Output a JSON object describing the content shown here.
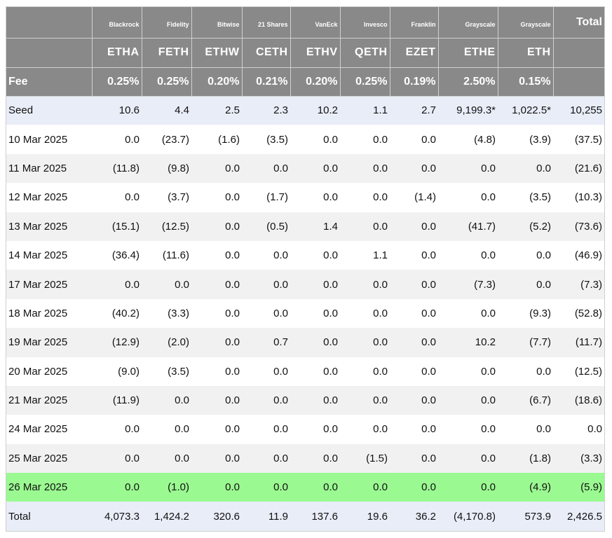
{
  "header": {
    "issuers": [
      "Blackrock",
      "Fidelity",
      "Bitwise",
      "21 Shares",
      "VanEck",
      "Invesco",
      "Franklin",
      "Grayscale",
      "Grayscale"
    ],
    "total_label": "Total",
    "tickers": [
      "ETHA",
      "FETH",
      "ETHW",
      "CETH",
      "ETHV",
      "QETH",
      "EZET",
      "ETHE",
      "ETH"
    ],
    "fee_label": "Fee",
    "fees": [
      "0.25%",
      "0.25%",
      "0.20%",
      "0.21%",
      "0.20%",
      "0.25%",
      "0.19%",
      "2.50%",
      "0.15%"
    ]
  },
  "rows": [
    {
      "label": "Seed",
      "values": [
        "10.6",
        "4.4",
        "2.5",
        "2.3",
        "10.2",
        "1.1",
        "2.7",
        "9,199.3*",
        "1,022.5*",
        "10,255"
      ]
    },
    {
      "label": "10 Mar 2025",
      "values": [
        "0.0",
        "(23.7)",
        "(1.6)",
        "(3.5)",
        "0.0",
        "0.0",
        "0.0",
        "(4.8)",
        "(3.9)",
        "(37.5)"
      ]
    },
    {
      "label": "11 Mar 2025",
      "values": [
        "(11.8)",
        "(9.8)",
        "0.0",
        "0.0",
        "0.0",
        "0.0",
        "0.0",
        "0.0",
        "0.0",
        "(21.6)"
      ]
    },
    {
      "label": "12 Mar 2025",
      "values": [
        "0.0",
        "(3.7)",
        "0.0",
        "(1.7)",
        "0.0",
        "0.0",
        "(1.4)",
        "0.0",
        "(3.5)",
        "(10.3)"
      ]
    },
    {
      "label": "13 Mar 2025",
      "values": [
        "(15.1)",
        "(12.5)",
        "0.0",
        "(0.5)",
        "1.4",
        "0.0",
        "0.0",
        "(41.7)",
        "(5.2)",
        "(73.6)"
      ]
    },
    {
      "label": "14 Mar 2025",
      "values": [
        "(36.4)",
        "(11.6)",
        "0.0",
        "0.0",
        "0.0",
        "1.1",
        "0.0",
        "0.0",
        "0.0",
        "(46.9)"
      ]
    },
    {
      "label": "17 Mar 2025",
      "values": [
        "0.0",
        "0.0",
        "0.0",
        "0.0",
        "0.0",
        "0.0",
        "0.0",
        "(7.3)",
        "0.0",
        "(7.3)"
      ]
    },
    {
      "label": "18 Mar 2025",
      "values": [
        "(40.2)",
        "(3.3)",
        "0.0",
        "0.0",
        "0.0",
        "0.0",
        "0.0",
        "0.0",
        "(9.3)",
        "(52.8)"
      ]
    },
    {
      "label": "19 Mar 2025",
      "values": [
        "(12.9)",
        "(2.0)",
        "0.0",
        "0.7",
        "0.0",
        "0.0",
        "0.0",
        "10.2",
        "(7.7)",
        "(11.7)"
      ]
    },
    {
      "label": "20 Mar 2025",
      "values": [
        "(9.0)",
        "(3.5)",
        "0.0",
        "0.0",
        "0.0",
        "0.0",
        "0.0",
        "0.0",
        "0.0",
        "(12.5)"
      ]
    },
    {
      "label": "21 Mar 2025",
      "values": [
        "(11.9)",
        "0.0",
        "0.0",
        "0.0",
        "0.0",
        "0.0",
        "0.0",
        "0.0",
        "(6.7)",
        "(18.6)"
      ]
    },
    {
      "label": "24 Mar 2025",
      "values": [
        "0.0",
        "0.0",
        "0.0",
        "0.0",
        "0.0",
        "0.0",
        "0.0",
        "0.0",
        "0.0",
        "0.0"
      ]
    },
    {
      "label": "25 Mar 2025",
      "values": [
        "0.0",
        "0.0",
        "0.0",
        "0.0",
        "0.0",
        "(1.5)",
        "0.0",
        "0.0",
        "(1.8)",
        "(3.3)"
      ]
    },
    {
      "label": "26 Mar 2025",
      "values": [
        "0.0",
        "(1.0)",
        "0.0",
        "0.0",
        "0.0",
        "0.0",
        "0.0",
        "0.0",
        "(4.9)",
        "(5.9)"
      ]
    },
    {
      "label": "Total",
      "values": [
        "4,073.3",
        "1,424.2",
        "320.6",
        "11.9",
        "137.6",
        "19.6",
        "36.2",
        "(4,170.8)",
        "573.9",
        "2,426.5"
      ]
    }
  ],
  "colors": {
    "header_bg": "#898989",
    "negative": "#e53030",
    "highlight": "#9af991",
    "seed_total_bg": "#e9edf8"
  }
}
